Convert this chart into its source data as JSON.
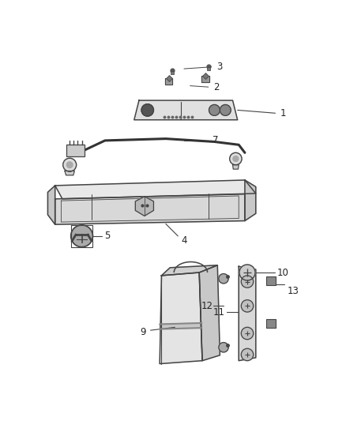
{
  "background_color": "#ffffff",
  "fig_width": 4.38,
  "fig_height": 5.33,
  "dpi": 100,
  "line_color": "#444444",
  "label_fontsize": 8.5
}
